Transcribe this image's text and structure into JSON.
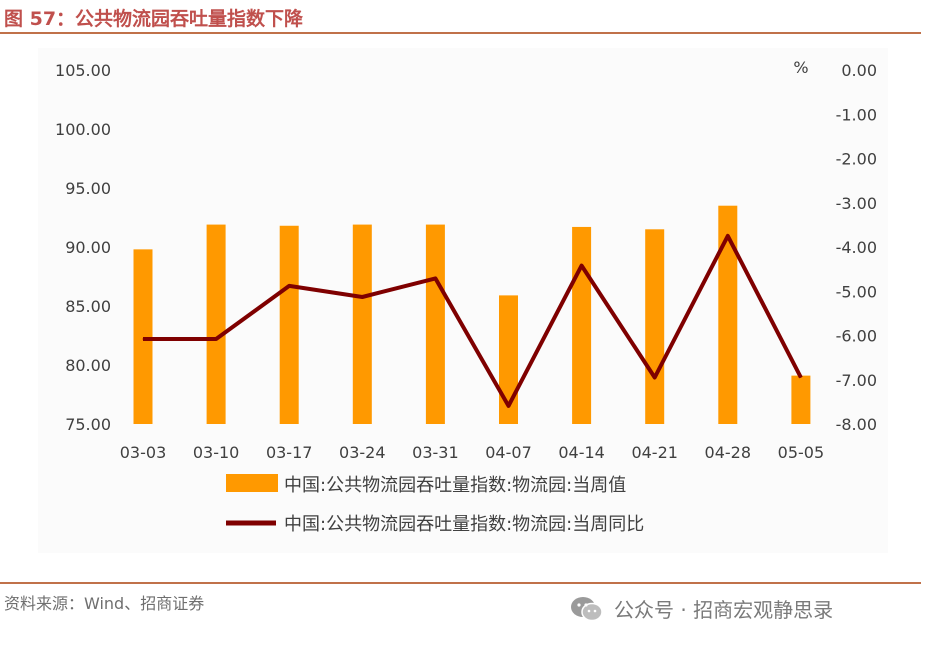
{
  "title": "图 57：公共物流园吞吐量指数下降",
  "source": "资料来源：Wind、招商证券",
  "watermark": "公众号 · 招商宏观静思录",
  "colors": {
    "bar": "#FF9900",
    "line": "#7F0000",
    "title": "#C0504D",
    "rule": "#C0714A"
  },
  "chart_data": {
    "type": "bar",
    "categories": [
      "03-03",
      "03-10",
      "03-17",
      "03-24",
      "03-31",
      "04-07",
      "04-14",
      "04-21",
      "04-28",
      "05-05"
    ],
    "y_left": {
      "ylim": [
        75,
        105
      ],
      "ticks": [
        "105.00",
        "100.00",
        "95.00",
        "90.00",
        "85.00",
        "80.00",
        "75.00"
      ]
    },
    "y_right": {
      "unit": "%",
      "ylim": [
        -8,
        0
      ],
      "ticks": [
        "0.00",
        "-1.00",
        "-2.00",
        "-3.00",
        "-4.00",
        "-5.00",
        "-6.00",
        "-7.00",
        "-8.00"
      ]
    },
    "series": [
      {
        "name": "中国:公共物流园吞吐量指数:物流园:当周值",
        "type": "bar",
        "axis": "left",
        "values": [
          89.8,
          91.9,
          91.8,
          91.9,
          91.9,
          85.9,
          91.7,
          91.5,
          93.5,
          79.1
        ]
      },
      {
        "name": "中国:公共物流园吞吐量指数:物流园:当周同比",
        "type": "line",
        "axis": "right",
        "values": [
          -6.08,
          -6.08,
          -4.88,
          -5.13,
          -4.71,
          -7.59,
          -4.42,
          -6.95,
          -3.75,
          -6.95
        ]
      }
    ],
    "legend_position": "bottom",
    "grid": false
  }
}
